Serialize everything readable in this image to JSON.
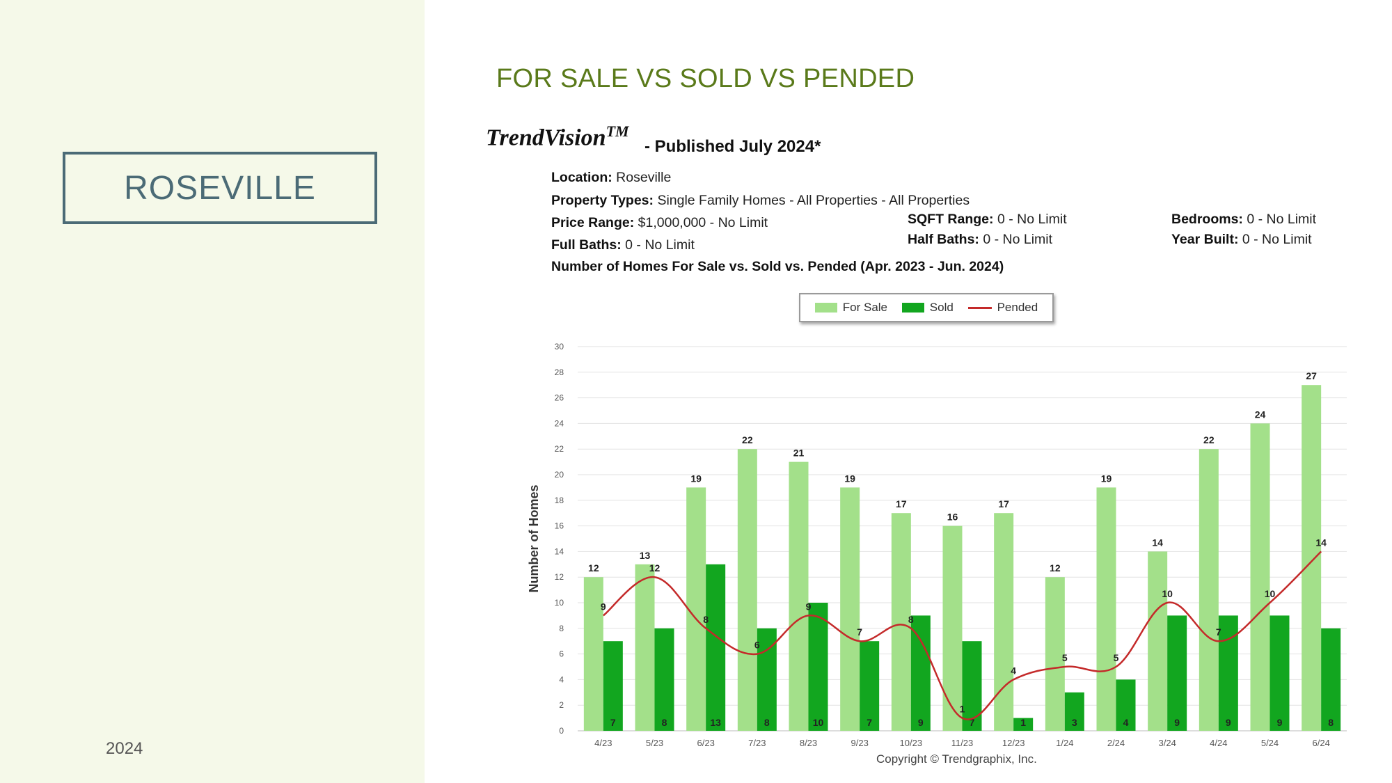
{
  "sidebar": {
    "city": "ROSEVILLE",
    "year": "2024"
  },
  "header": {
    "title": "FOR SALE VS SOLD VS PENDED",
    "brand": "TrendVision",
    "brand_tm": "TM",
    "published": "- Published July 2024*"
  },
  "filters": {
    "location_label": "Location:",
    "location_value": "Roseville",
    "property_types_label": "Property Types:",
    "property_types_value": "Single Family Homes - All Properties - All Properties",
    "price_range_label": "Price Range:",
    "price_range_value": "$1,000,000 - No Limit",
    "sqft_range_label": "SQFT Range:",
    "sqft_range_value": "0 - No Limit",
    "bedrooms_label": "Bedrooms:",
    "bedrooms_value": "0 - No Limit",
    "full_baths_label": "Full Baths:",
    "full_baths_value": "0 - No Limit",
    "half_baths_label": "Half Baths:",
    "half_baths_value": "0 - No Limit",
    "year_built_label": "Year Built:",
    "year_built_value": "0 - No Limit"
  },
  "colors": {
    "for_sale": "#a3e08a",
    "sold": "#12a61f",
    "pended": "#c42a2a",
    "title": "#5a7a1a",
    "city": "#4b6b76"
  },
  "chart_data": {
    "type": "bar",
    "title": "Number of Homes For Sale vs. Sold vs. Pended (Apr. 2023 - Jun. 2024)",
    "ylabel": "Number of Homes",
    "xlabel": "",
    "ylim": [
      0,
      30
    ],
    "yticks": [
      0,
      2,
      4,
      6,
      8,
      10,
      12,
      14,
      16,
      18,
      20,
      22,
      24,
      26,
      28,
      30
    ],
    "grid": true,
    "legend_position": "top-center",
    "categories": [
      "4/23",
      "5/23",
      "6/23",
      "7/23",
      "8/23",
      "9/23",
      "10/23",
      "11/23",
      "12/23",
      "1/24",
      "2/24",
      "3/24",
      "4/24",
      "5/24",
      "6/24"
    ],
    "series": [
      {
        "name": "For Sale",
        "type": "bar",
        "values": [
          12,
          13,
          19,
          22,
          21,
          19,
          17,
          16,
          17,
          12,
          19,
          14,
          22,
          24,
          27
        ]
      },
      {
        "name": "Sold",
        "type": "bar",
        "values": [
          7,
          8,
          13,
          8,
          10,
          7,
          9,
          7,
          1,
          3,
          4,
          9,
          9,
          9,
          8
        ]
      },
      {
        "name": "Pended",
        "type": "line",
        "values": [
          9,
          12,
          8,
          6,
          9,
          7,
          8,
          1,
          4,
          5,
          5,
          10,
          7,
          10,
          14
        ]
      }
    ],
    "footer": "Copyright © Trendgraphix, Inc."
  }
}
